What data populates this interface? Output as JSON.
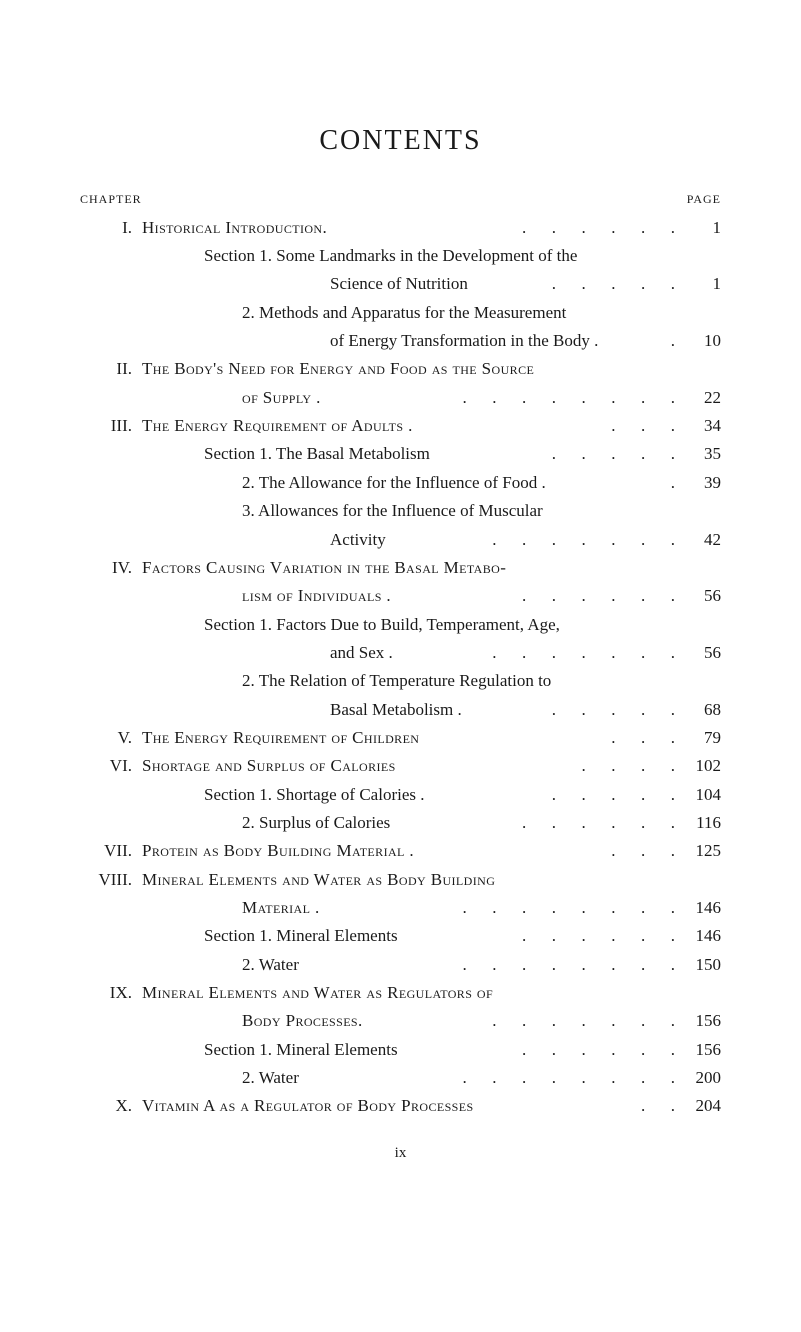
{
  "title": "CONTENTS",
  "header": {
    "left": "CHAPTER",
    "right": "PAGE"
  },
  "footerRoman": "ix",
  "entries": [
    {
      "roman": "I.",
      "textPrefixSC": "Historical Introduction.",
      "textRest": "",
      "dots": ".      .      .      .      .      .",
      "page": "1",
      "indent": 0
    },
    {
      "textRest": "Section 1. Some Landmarks in the Development of the",
      "indent": 1
    },
    {
      "textRest": "Science of Nutrition",
      "dots": ".      .      .      .      .",
      "page": "1",
      "indent": 4
    },
    {
      "textRest": "2. Methods and Apparatus for the Measurement",
      "indent": 2
    },
    {
      "textRest": "of Energy Transformation in the Body .",
      "dots": ".",
      "page": "10",
      "indent": 4
    },
    {
      "roman": "II.",
      "textPrefixSC": "The Body's Need for Energy and Food as the Source",
      "indent": 0
    },
    {
      "textPrefixSC": "of Supply .",
      "dots": ".      .      .      .      .      .      .      .",
      "page": "22",
      "indent": 2
    },
    {
      "roman": "III.",
      "textPrefixSC": "The Energy Requirement of Adults .",
      "dots": ".      .      .",
      "page": "34",
      "indent": 0
    },
    {
      "textRest": "Section 1. The Basal Metabolism",
      "dots": ".      .      .      .      .",
      "page": "35",
      "indent": 1
    },
    {
      "textRest": "2. The Allowance for the Influence of Food .",
      "dots": ".",
      "page": "39",
      "indent": 2
    },
    {
      "textRest": "3. Allowances for the Influence of Muscular",
      "indent": 2
    },
    {
      "textRest": "Activity",
      "dots": ".      .      .      .      .      .      .",
      "page": "42",
      "indent": 4
    },
    {
      "roman": "IV.",
      "textPrefixSC": "Factors Causing Variation in the Basal Metabo-",
      "indent": 0
    },
    {
      "textPrefixSC": "lism of Individuals .",
      "dots": ".      .      .      .      .      .",
      "page": "56",
      "indent": 2
    },
    {
      "textRest": "Section 1. Factors Due to Build, Temperament, Age,",
      "indent": 1
    },
    {
      "textRest": "and Sex .",
      "dots": ".      .      .      .      .      .      .",
      "page": "56",
      "indent": 4
    },
    {
      "textRest": "2. The Relation of Temperature Regulation to",
      "indent": 2
    },
    {
      "textRest": "Basal Metabolism .",
      "dots": ".      .      .      .      .",
      "page": "68",
      "indent": 4
    },
    {
      "roman": "V.",
      "textPrefixSC": "The Energy Requirement of Children",
      "dots": ".      .      .",
      "page": "79",
      "indent": 0
    },
    {
      "roman": "VI.",
      "textPrefixSC": "Shortage and Surplus of Calories",
      "dots": ".      .      .      .",
      "page": "102",
      "indent": 0
    },
    {
      "textRest": "Section 1. Shortage of Calories .",
      "dots": ".      .      .      .      .",
      "page": "104",
      "indent": 1
    },
    {
      "textRest": "2. Surplus of Calories",
      "dots": ".      .      .      .      .      .",
      "page": "116",
      "indent": 2
    },
    {
      "roman": "VII.",
      "textPrefixSC": "Protein as Body Building Material .",
      "dots": ".      .      .",
      "page": "125",
      "indent": 0
    },
    {
      "roman": "VIII.",
      "textPrefixSC": "Mineral Elements and Water as Body Building",
      "indent": 0
    },
    {
      "textPrefixSC": "Material .",
      "dots": ".      .      .      .      .      .      .      .",
      "page": "146",
      "indent": 2
    },
    {
      "textRest": "Section 1. Mineral Elements",
      "dots": ".      .      .      .      .      .",
      "page": "146",
      "indent": 1
    },
    {
      "textRest": "2. Water",
      "dots": ".      .      .      .      .      .      .      .",
      "page": "150",
      "indent": 2
    },
    {
      "roman": "IX.",
      "textPrefixSC": "Mineral Elements and Water as Regulators of",
      "indent": 0
    },
    {
      "textPrefixSC": "Body Processes.",
      "dots": ".      .      .      .      .      .      .",
      "page": "156",
      "indent": 2
    },
    {
      "textRest": "Section 1. Mineral Elements",
      "dots": ".      .      .      .      .      .",
      "page": "156",
      "indent": 1
    },
    {
      "textRest": "2. Water",
      "dots": ".      .      .      .      .      .      .      .",
      "page": "200",
      "indent": 2
    },
    {
      "roman": "X.",
      "textPrefixSC": "Vitamin A as a Regulator of Body Processes",
      "dots": ".      .",
      "page": "204",
      "indent": 0
    }
  ]
}
